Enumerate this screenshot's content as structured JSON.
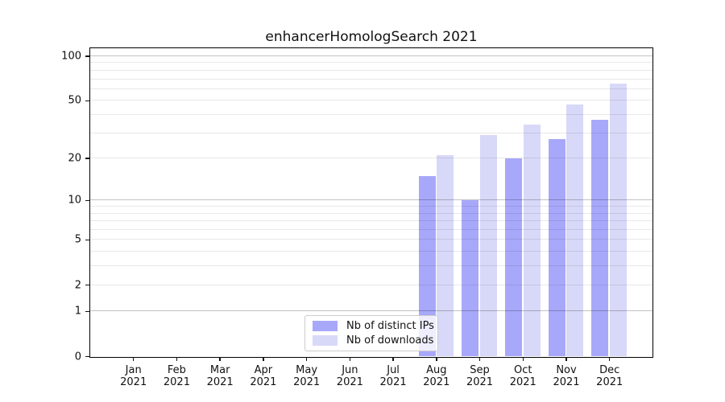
{
  "background_color": "#ffffff",
  "chart_data": {
    "type": "bar",
    "title": "enhancerHomologSearch 2021",
    "categories": [
      "Jan 2021",
      "Feb 2021",
      "Mar 2021",
      "Apr 2021",
      "May 2021",
      "Jun 2021",
      "Jul 2021",
      "Aug 2021",
      "Sep 2021",
      "Oct 2021",
      "Nov 2021",
      "Dec 2021"
    ],
    "series": [
      {
        "name": "Nb of distinct IPs",
        "color": "#a8a8fa",
        "values": [
          0,
          0,
          0,
          0,
          0,
          0,
          0,
          15,
          10,
          20,
          27,
          37
        ]
      },
      {
        "name": "Nb of downloads",
        "color": "#d8d8f8",
        "values": [
          0,
          0,
          0,
          0,
          0,
          0,
          0,
          21,
          29,
          34,
          47,
          65
        ]
      }
    ],
    "xlabel": "",
    "ylabel": "",
    "yscale": "log1p",
    "ylim": [
      0,
      112
    ],
    "yticks": [
      0,
      1,
      2,
      5,
      10,
      20,
      50,
      100
    ],
    "grid_minor": [
      2,
      3,
      4,
      5,
      6,
      7,
      8,
      9,
      20,
      30,
      40,
      50,
      60,
      70,
      80,
      90
    ],
    "grid_major": [
      1,
      10,
      100
    ],
    "grid": "on",
    "legend_position": "lower center",
    "grid_minor_color": "rgba(0,0,0,0.09)",
    "grid_major_color": "rgba(0,0,0,0.24)"
  }
}
